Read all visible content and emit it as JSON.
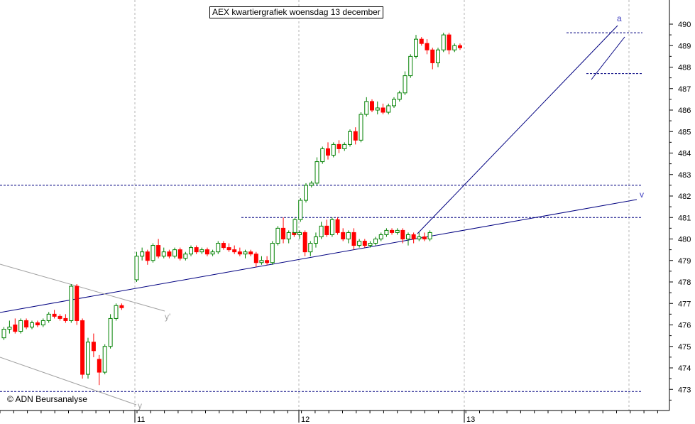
{
  "title": "AEX kwartiergrafiek woensdag 13 december",
  "copyright": "© ADN Beursanalyse",
  "chart_data": {
    "type": "candlestick",
    "title": "AEX kwartiergrafiek woensdag 13 december",
    "x_tick_labels": [
      "11",
      "12",
      "13"
    ],
    "y_ticks": [
      473,
      474,
      475,
      476,
      477,
      478,
      479,
      480,
      481,
      482,
      483,
      484,
      485,
      486,
      487,
      488,
      489,
      490
    ],
    "ylim": [
      472.3,
      490.9
    ],
    "grid": true,
    "colors": {
      "up": "#008000",
      "down": "#ff0000",
      "trend": "#000080",
      "channel": "#a0a0a0",
      "grid": "#b4b4b4"
    },
    "annotations": [
      {
        "text": "a",
        "color": "#4040c0"
      },
      {
        "text": "v",
        "color": "#4040c0"
      },
      {
        "text": "y'",
        "color": "#a0a0a0"
      },
      {
        "text": "y",
        "color": "#a0a0a0"
      }
    ],
    "horizontal_levels": [
      482.5,
      481.0,
      489.6,
      487.7,
      472.9
    ],
    "candles": [
      [
        475.4,
        475.9,
        475.3,
        475.8
      ],
      [
        475.8,
        476.2,
        475.6,
        475.9
      ],
      [
        476.0,
        476.3,
        475.6,
        475.7
      ],
      [
        475.7,
        476.3,
        475.6,
        476.2
      ],
      [
        476.2,
        476.3,
        475.8,
        475.9
      ],
      [
        475.9,
        476.2,
        475.8,
        476.1
      ],
      [
        476.1,
        476.2,
        475.9,
        476.0
      ],
      [
        476.0,
        476.3,
        475.9,
        476.2
      ],
      [
        476.2,
        476.6,
        476.1,
        476.5
      ],
      [
        476.5,
        476.7,
        476.3,
        476.4
      ],
      [
        476.4,
        476.5,
        476.2,
        476.3
      ],
      [
        476.3,
        476.5,
        476.1,
        476.2
      ],
      [
        476.2,
        477.9,
        476.1,
        477.8
      ],
      [
        477.8,
        477.9,
        476.0,
        476.2
      ],
      [
        476.2,
        476.3,
        473.5,
        473.7
      ],
      [
        473.7,
        475.4,
        473.5,
        475.2
      ],
      [
        475.2,
        475.6,
        474.5,
        474.8
      ],
      [
        474.4,
        474.6,
        473.2,
        473.8
      ],
      [
        473.8,
        475.1,
        473.7,
        475.0
      ],
      [
        475.0,
        476.5,
        474.9,
        476.3
      ],
      [
        476.3,
        477.0,
        476.2,
        476.9
      ],
      [
        476.9,
        477.0,
        476.7,
        476.8
      ],
      [
        478.1,
        479.4,
        478.0,
        479.2
      ],
      [
        479.2,
        479.6,
        479.0,
        479.4
      ],
      [
        479.4,
        479.5,
        478.8,
        479.0
      ],
      [
        479.0,
        479.8,
        478.9,
        479.7
      ],
      [
        479.7,
        480.0,
        479.1,
        479.2
      ],
      [
        479.2,
        479.6,
        479.1,
        479.4
      ],
      [
        479.4,
        479.5,
        479.1,
        479.2
      ],
      [
        479.2,
        479.6,
        479.1,
        479.5
      ],
      [
        479.5,
        479.6,
        479.0,
        479.1
      ],
      [
        479.1,
        479.4,
        479.0,
        479.3
      ],
      [
        479.3,
        479.7,
        479.2,
        479.6
      ],
      [
        479.6,
        479.7,
        479.3,
        479.4
      ],
      [
        479.4,
        479.6,
        479.3,
        479.5
      ],
      [
        479.5,
        479.6,
        479.2,
        479.3
      ],
      [
        479.3,
        479.5,
        479.2,
        479.4
      ],
      [
        479.4,
        479.9,
        479.3,
        479.8
      ],
      [
        479.8,
        479.9,
        479.5,
        479.6
      ],
      [
        479.6,
        479.8,
        479.4,
        479.5
      ],
      [
        479.5,
        479.7,
        479.3,
        479.4
      ],
      [
        479.4,
        479.6,
        479.2,
        479.3
      ],
      [
        479.3,
        479.5,
        479.1,
        479.4
      ],
      [
        479.4,
        479.5,
        479.2,
        479.3
      ],
      [
        479.3,
        479.4,
        478.7,
        478.9
      ],
      [
        478.9,
        479.2,
        478.8,
        479.0
      ],
      [
        479.0,
        479.2,
        478.8,
        478.9
      ],
      [
        478.9,
        479.9,
        478.8,
        479.8
      ],
      [
        479.8,
        480.6,
        479.7,
        480.5
      ],
      [
        480.5,
        481.0,
        479.8,
        480.0
      ],
      [
        480.0,
        480.4,
        479.8,
        480.3
      ],
      [
        480.3,
        480.5,
        480.1,
        480.2
      ],
      [
        480.2,
        480.4,
        480.0,
        480.3
      ],
      [
        480.3,
        480.4,
        479.2,
        479.4
      ],
      [
        479.4,
        479.9,
        479.2,
        479.8
      ],
      [
        479.8,
        480.3,
        479.6,
        480.1
      ],
      [
        480.1,
        480.8,
        480.0,
        480.6
      ],
      [
        480.6,
        480.9,
        480.1,
        480.2
      ],
      [
        480.2,
        481.0,
        480.1,
        480.9
      ],
      [
        480.9,
        481.0,
        480.2,
        480.3
      ],
      [
        480.3,
        480.5,
        479.9,
        480.0
      ],
      [
        480.0,
        480.4,
        479.8,
        480.3
      ],
      [
        480.3,
        480.5,
        479.5,
        479.7
      ],
      [
        479.7,
        480.0,
        479.6,
        479.9
      ],
      [
        479.9,
        480.0,
        479.6,
        479.7
      ],
      [
        479.7,
        479.9,
        479.6,
        479.8
      ],
      [
        479.8,
        480.1,
        479.7,
        480.0
      ],
      [
        480.0,
        480.3,
        479.9,
        480.2
      ],
      [
        480.2,
        480.5,
        480.1,
        480.4
      ],
      [
        480.4,
        480.5,
        480.2,
        480.3
      ],
      [
        480.3,
        480.5,
        480.2,
        480.4
      ],
      [
        480.4,
        480.5,
        479.8,
        480.0
      ],
      [
        480.0,
        480.3,
        479.7,
        480.2
      ],
      [
        480.2,
        480.3,
        479.8,
        480.0
      ],
      [
        480.0,
        480.3,
        479.9,
        480.1
      ],
      [
        480.1,
        480.3,
        479.9,
        480.0
      ],
      [
        480.0,
        480.4,
        479.9,
        480.3
      ],
      [
        480.3,
        481.0,
        480.2,
        480.9
      ],
      [
        480.9,
        481.9,
        480.8,
        481.8
      ],
      [
        481.8,
        482.6,
        481.7,
        482.5
      ],
      [
        482.5,
        482.7,
        482.4,
        482.6
      ],
      [
        482.6,
        483.8,
        482.5,
        483.6
      ],
      [
        483.6,
        484.3,
        483.5,
        484.2
      ],
      [
        484.2,
        484.5,
        483.7,
        483.9
      ],
      [
        483.9,
        484.5,
        483.8,
        484.4
      ],
      [
        484.4,
        484.6,
        484.0,
        484.2
      ],
      [
        484.2,
        484.5,
        484.1,
        484.4
      ],
      [
        484.4,
        485.1,
        484.3,
        485.0
      ],
      [
        485.0,
        485.2,
        484.4,
        484.6
      ],
      [
        484.6,
        485.9,
        484.5,
        485.8
      ],
      [
        485.8,
        486.6,
        485.7,
        486.4
      ],
      [
        486.4,
        486.5,
        485.9,
        486.0
      ],
      [
        486.0,
        486.4,
        485.8,
        486.1
      ],
      [
        486.1,
        486.3,
        485.8,
        485.9
      ],
      [
        485.9,
        486.3,
        485.8,
        486.2
      ],
      [
        486.2,
        486.6,
        486.1,
        486.5
      ],
      [
        486.5,
        486.9,
        486.4,
        486.8
      ],
      [
        486.8,
        487.8,
        486.7,
        487.6
      ],
      [
        487.6,
        488.6,
        487.5,
        488.5
      ],
      [
        488.5,
        489.5,
        488.4,
        489.3
      ],
      [
        489.3,
        489.4,
        489.0,
        489.1
      ],
      [
        489.1,
        489.3,
        488.6,
        488.8
      ],
      [
        488.8,
        488.9,
        487.9,
        488.2
      ],
      [
        488.2,
        488.9,
        488.0,
        488.8
      ],
      [
        488.8,
        489.6,
        488.7,
        489.5
      ],
      [
        489.5,
        489.6,
        488.6,
        488.8
      ],
      [
        488.8,
        489.1,
        488.7,
        489.0
      ],
      [
        489.0,
        489.1,
        488.8,
        488.9
      ]
    ]
  }
}
